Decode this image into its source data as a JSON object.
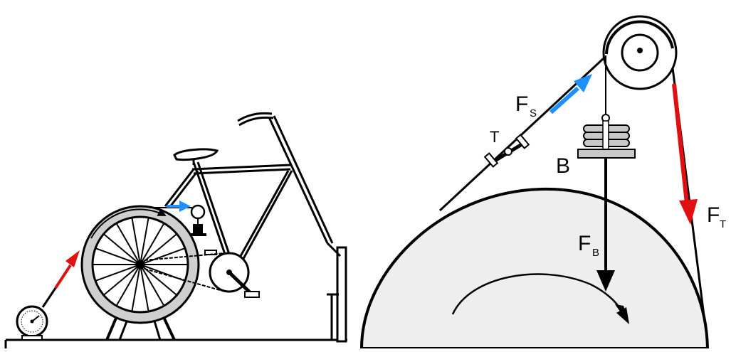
{
  "labels": {
    "fs_main": "F",
    "fs_sub": "S",
    "t": "T",
    "b": "B",
    "fb_main": "F",
    "fb_sub": "B",
    "ft_main": "F",
    "ft_sub": "T"
  },
  "colors": {
    "line": "#000000",
    "drum_fill": "#eeeeee",
    "wheel_ring": "#cfcfcf",
    "tension_arrow": "#e01010",
    "spring_arrow": "#1e90ff",
    "weights": "#c8c8c8"
  }
}
